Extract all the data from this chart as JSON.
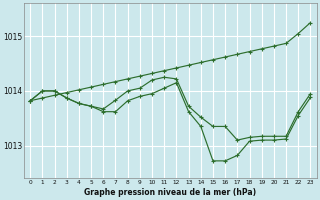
{
  "xlabel": "Graphe pression niveau de la mer (hPa)",
  "background_color": "#cce8ec",
  "grid_color": "#ffffff",
  "line_color": "#2d6e2d",
  "hours": [
    0,
    1,
    2,
    3,
    4,
    5,
    6,
    7,
    8,
    9,
    10,
    11,
    12,
    13,
    14,
    15,
    16,
    17,
    18,
    19,
    20,
    21,
    22,
    23
  ],
  "series_straight": [
    1013.82,
    1013.87,
    1013.92,
    1013.97,
    1014.02,
    1014.07,
    1014.12,
    1014.17,
    1014.22,
    1014.27,
    1014.32,
    1014.37,
    1014.42,
    1014.47,
    1014.52,
    1014.57,
    1014.62,
    1014.67,
    1014.72,
    1014.77,
    1014.82,
    1014.87,
    1015.05,
    1015.25
  ],
  "series_mid": [
    1013.82,
    1014.0,
    1014.0,
    1013.87,
    1013.77,
    1013.72,
    1013.67,
    1013.83,
    1014.0,
    1014.05,
    1014.2,
    1014.25,
    1014.22,
    1013.72,
    1013.52,
    1013.35,
    1013.35,
    1013.1,
    1013.15,
    1013.17,
    1013.17,
    1013.17,
    1013.62,
    1013.95
  ],
  "series_low": [
    1013.82,
    1014.0,
    1014.0,
    1013.87,
    1013.77,
    1013.72,
    1013.62,
    1013.62,
    1013.82,
    1013.9,
    1013.95,
    1014.05,
    1014.15,
    1013.62,
    1013.35,
    1012.72,
    1012.72,
    1012.82,
    1013.08,
    1013.1,
    1013.1,
    1013.12,
    1013.55,
    1013.88
  ],
  "ylim": [
    1012.4,
    1015.6
  ],
  "yticks": [
    1013.0,
    1014.0,
    1015.0
  ],
  "xlim": [
    -0.5,
    23.5
  ],
  "figsize": [
    3.2,
    2.0
  ],
  "dpi": 100
}
